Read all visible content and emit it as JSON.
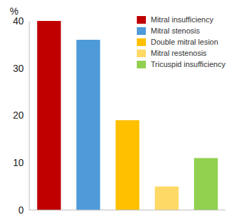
{
  "chart_data": {
    "type": "bar",
    "y_label": "%",
    "categories": [
      "Mitral insufficiency",
      "Mitral stenosis",
      "Double mitral lesion",
      "Mitral restenosis",
      "Tricuspid insufficiency"
    ],
    "values": [
      40,
      36,
      19,
      5,
      11
    ],
    "colors": [
      "#c00000",
      "#4f9bd9",
      "#ffc000",
      "#ffd966",
      "#92d050"
    ],
    "ylim": [
      0,
      40
    ],
    "yticks": [
      0,
      10,
      20,
      30,
      40
    ],
    "grid": false,
    "legend": "upper right",
    "tick_labels": "y"
  }
}
